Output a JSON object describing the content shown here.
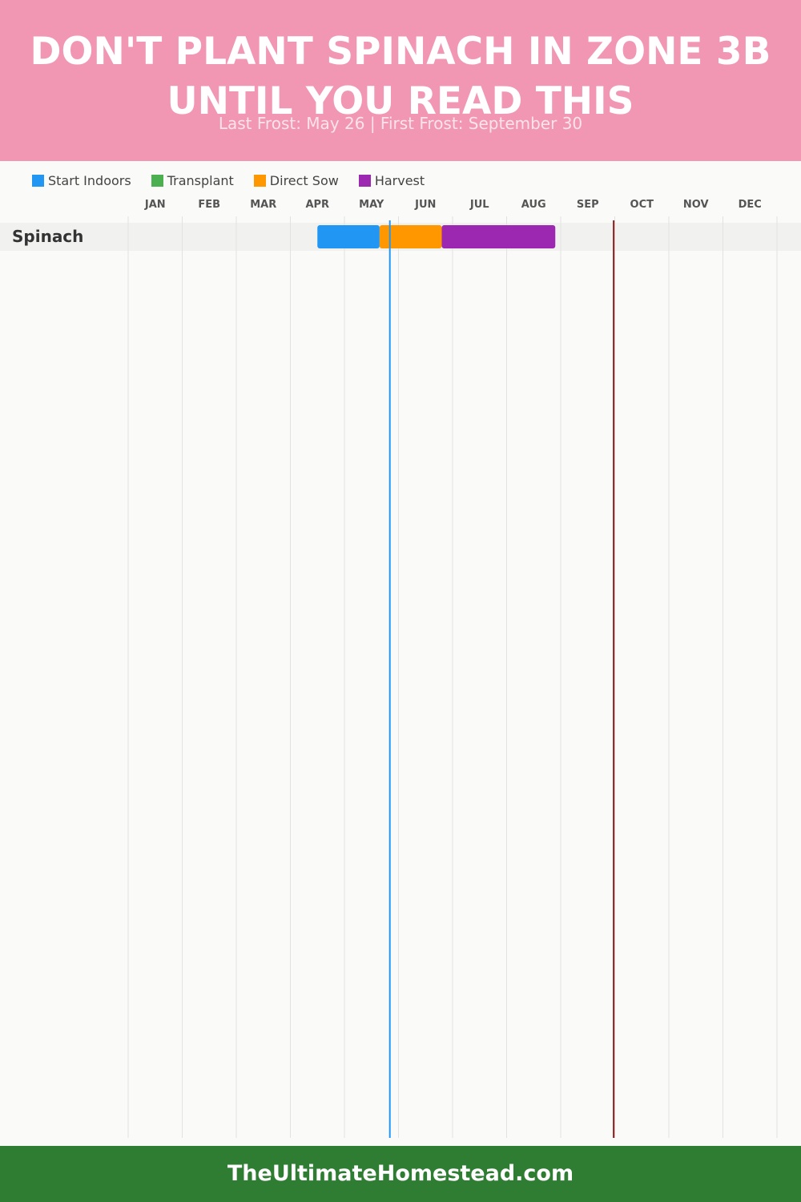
{
  "header": {
    "title": "DON'T PLANT SPINACH IN ZONE 3B UNTIL YOU READ THIS",
    "subtitle": "Last Frost: May 26 | First Frost: September 30"
  },
  "footer": {
    "site": "TheUltimateHomestead.com"
  },
  "chart_data": {
    "type": "gantt",
    "months": [
      "JAN",
      "FEB",
      "MAR",
      "APR",
      "MAY",
      "JUN",
      "JUL",
      "AUG",
      "SEP",
      "OCT",
      "NOV",
      "DEC"
    ],
    "legend": [
      {
        "key": "start_indoors",
        "label": "Start Indoors",
        "color": "#2196f3"
      },
      {
        "key": "transplant",
        "label": "Transplant",
        "color": "#4caf50"
      },
      {
        "key": "direct_sow",
        "label": "Direct Sow",
        "color": "#ff9800"
      },
      {
        "key": "harvest",
        "label": "Harvest",
        "color": "#9c27b0"
      }
    ],
    "crops": [
      {
        "name": "Spinach",
        "periods": [
          {
            "type": "start_indoors",
            "start_month": 4.5,
            "end_month": 5.65
          },
          {
            "type": "direct_sow",
            "start_month": 5.65,
            "end_month": 6.8
          },
          {
            "type": "harvest",
            "start_month": 6.8,
            "end_month": 8.9
          }
        ]
      }
    ],
    "frost_lines": [
      {
        "name": "last_frost",
        "month": 5.84,
        "color": "#2196f3"
      },
      {
        "name": "first_frost",
        "month": 9.98,
        "color": "#8b1a1a"
      }
    ]
  }
}
